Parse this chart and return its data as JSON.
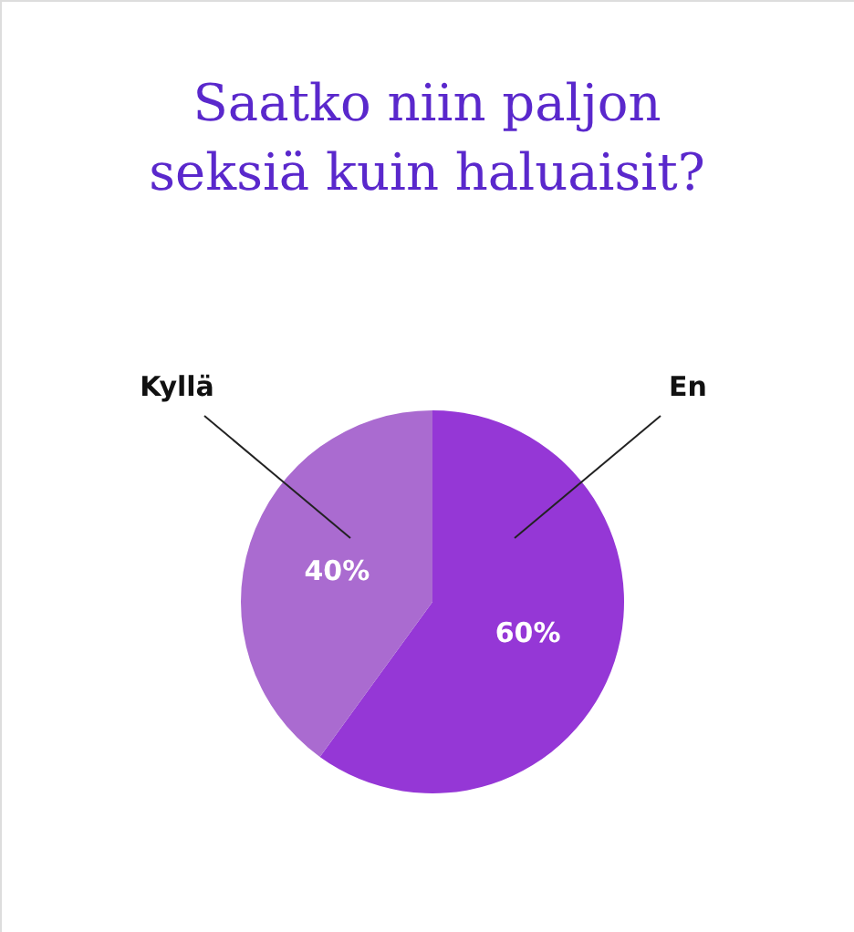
{
  "chart_data": {
    "type": "pie",
    "title": [
      "Saatko niin paljon",
      "seksiä kuin haluaisit?"
    ],
    "categories": [
      "En",
      "Kyllä"
    ],
    "values": [
      60,
      40
    ],
    "colors": [
      "#9537d6",
      "#aa6bd0"
    ],
    "value_labels": [
      "60%",
      "40%"
    ]
  }
}
